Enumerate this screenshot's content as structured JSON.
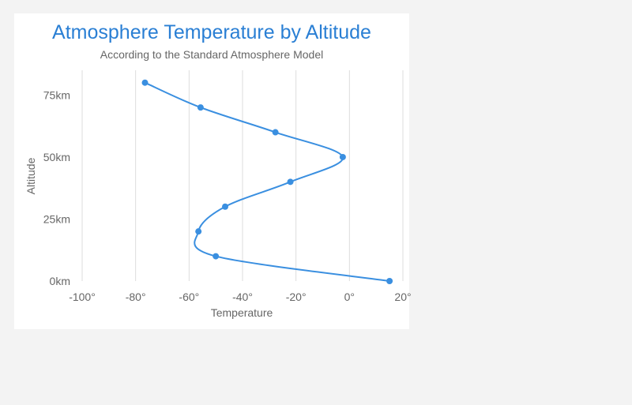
{
  "chart_data": {
    "type": "line",
    "title": "Atmosphere Temperature by Altitude",
    "subtitle": "According to the Standard Atmosphere Model",
    "xlabel": "Temperature",
    "ylabel": "Altitude",
    "x_ticks": [
      "-100°",
      "-80°",
      "-60°",
      "-40°",
      "-20°",
      "0°",
      "20°"
    ],
    "y_ticks": [
      "0km",
      "25km",
      "50km",
      "75km"
    ],
    "xlim": [
      -100,
      20
    ],
    "ylim": [
      0,
      85
    ],
    "x_tick_values": [
      -100,
      -80,
      -60,
      -40,
      -20,
      0,
      20
    ],
    "y_tick_values": [
      0,
      25,
      50,
      75
    ],
    "grid": "vertical",
    "legend": "none",
    "series": [
      {
        "color": "#3a8fe0",
        "points": [
          {
            "altitude": 0,
            "temperature": 15
          },
          {
            "altitude": 10,
            "temperature": -50
          },
          {
            "altitude": 20,
            "temperature": -56.5
          },
          {
            "altitude": 30,
            "temperature": -46.5
          },
          {
            "altitude": 40,
            "temperature": -22.1
          },
          {
            "altitude": 50,
            "temperature": -2.5
          },
          {
            "altitude": 60,
            "temperature": -27.7
          },
          {
            "altitude": 70,
            "temperature": -55.7
          },
          {
            "altitude": 80,
            "temperature": -76.5
          }
        ]
      }
    ]
  }
}
